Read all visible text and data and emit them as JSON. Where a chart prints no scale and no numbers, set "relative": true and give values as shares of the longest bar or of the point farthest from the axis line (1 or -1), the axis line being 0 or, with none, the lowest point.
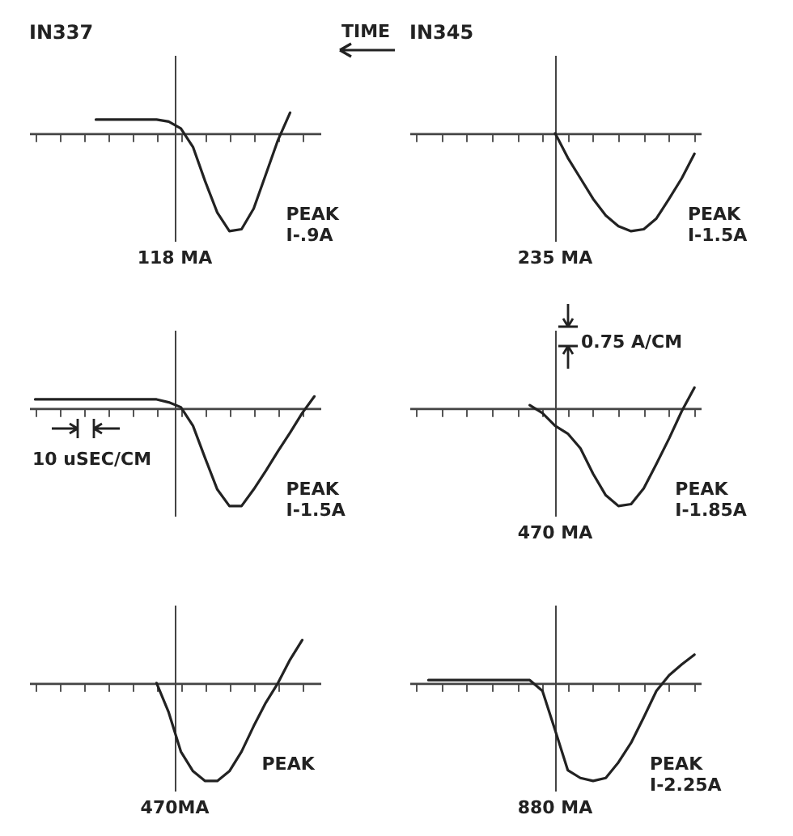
{
  "chart_data": [
    {
      "type": "line",
      "relative": true,
      "title": "IN337",
      "color": "#222222",
      "annotations": [
        "PEAK I-.9A",
        "118 MA",
        "TIME"
      ],
      "categories": [
        null,
        null,
        null,
        null,
        null,
        null,
        null,
        null,
        null,
        null,
        null,
        null,
        null,
        null,
        null,
        null,
        null,
        null,
        null,
        null,
        null,
        null,
        null,
        null
      ],
      "values": [
        null,
        null,
        null,
        null,
        null,
        0.14,
        0.14,
        0.14,
        0.14,
        0.14,
        0.14,
        0.12,
        0.05,
        -0.14,
        -0.49,
        -0.81,
        -1,
        -0.98,
        -0.77,
        -0.42,
        -0.07,
        0.21,
        null,
        null
      ]
    },
    {
      "type": "line",
      "relative": true,
      "title": "IN345",
      "color": "#222222",
      "annotations": [
        "PEAK I-1.5A",
        "235 MA"
      ],
      "categories": [
        null,
        null,
        null,
        null,
        null,
        null,
        null,
        null,
        null,
        null,
        null,
        null,
        null,
        null,
        null,
        null,
        null,
        null,
        null,
        null,
        null,
        null,
        null
      ],
      "values": [
        null,
        null,
        null,
        null,
        null,
        null,
        null,
        null,
        null,
        null,
        null,
        0,
        -0.25,
        -0.46,
        -0.67,
        -0.84,
        -0.95,
        -1,
        -0.98,
        -0.87,
        -0.67,
        -0.46,
        -0.21
      ]
    },
    {
      "type": "line",
      "relative": true,
      "color": "#222222",
      "annotations": [
        "PEAK I-1.5A",
        null,
        "10 uSEC/CM"
      ],
      "categories": [
        null,
        null,
        null,
        null,
        null,
        null,
        null,
        null,
        null,
        null,
        null,
        null,
        null,
        null,
        null,
        null,
        null,
        null,
        null,
        null,
        null,
        null,
        null,
        null
      ],
      "values": [
        0.09,
        0.09,
        0.09,
        0.09,
        0.09,
        0.09,
        0.09,
        0.09,
        0.09,
        0.09,
        0.09,
        0.06,
        0.01,
        -0.18,
        -0.51,
        -0.83,
        -1,
        -1,
        -0.83,
        -0.64,
        -0.44,
        -0.25,
        -0.05,
        0.12
      ]
    },
    {
      "type": "line",
      "relative": true,
      "color": "#222222",
      "annotations": [
        "PEAK I-1.85A",
        "470 MA",
        "0.75 A/CM"
      ],
      "categories": [
        null,
        null,
        null,
        null,
        null,
        null,
        null,
        null,
        null,
        null,
        null,
        null,
        null,
        null,
        null,
        null,
        null,
        null,
        null,
        null,
        null,
        null,
        null
      ],
      "values": [
        null,
        null,
        null,
        null,
        null,
        null,
        null,
        null,
        null,
        0.03,
        -0.05,
        -0.18,
        -0.26,
        -0.41,
        -0.67,
        -0.89,
        -1,
        -0.98,
        -0.82,
        -0.57,
        -0.31,
        -0.03,
        0.21
      ]
    },
    {
      "type": "line",
      "relative": true,
      "color": "#222222",
      "annotations": [
        "PEAK",
        "470MA"
      ],
      "categories": [
        null,
        null,
        null,
        null,
        null,
        null,
        null,
        null,
        null,
        null,
        null,
        null,
        null,
        null,
        null,
        null,
        null,
        null,
        null,
        null,
        null,
        null,
        null,
        null
      ],
      "values": [
        null,
        null,
        null,
        null,
        null,
        null,
        null,
        null,
        null,
        null,
        0,
        -0.3,
        -0.7,
        -0.9,
        -1,
        -1,
        -0.9,
        -0.7,
        -0.44,
        -0.2,
        0,
        0.24,
        0.44,
        null
      ]
    },
    {
      "type": "line",
      "relative": true,
      "color": "#222222",
      "annotations": [
        "PEAK I-2.25A",
        "880 MA"
      ],
      "categories": [
        null,
        null,
        null,
        null,
        null,
        null,
        null,
        null,
        null,
        null,
        null,
        null,
        null,
        null,
        null,
        null,
        null,
        null,
        null,
        null,
        null,
        null,
        null
      ],
      "values": [
        null,
        0.03,
        0.03,
        0.03,
        0.03,
        0.03,
        0.03,
        0.03,
        0.03,
        0.03,
        -0.08,
        -0.48,
        -0.89,
        -0.97,
        -1,
        -0.97,
        -0.81,
        -0.61,
        -0.35,
        -0.08,
        0.08,
        0.19,
        0.29
      ]
    }
  ]
}
